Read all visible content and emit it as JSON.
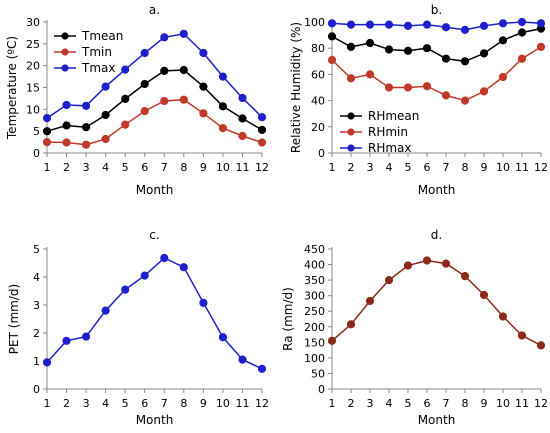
{
  "chart_data": [
    {
      "id": "a",
      "panel_label": "a.",
      "type": "line",
      "xlabel": "Month",
      "ylabel": "Temperature (ºC)",
      "x": [
        1,
        2,
        3,
        4,
        5,
        6,
        7,
        8,
        9,
        10,
        11,
        12
      ],
      "xlim": [
        1,
        12
      ],
      "ylim": [
        0,
        30
      ],
      "yticks": [
        0,
        5,
        10,
        15,
        20,
        25,
        30
      ],
      "legend_position": "top-left",
      "grid": false,
      "series": [
        {
          "name": "Tmean",
          "color": "#000000",
          "values": [
            5.0,
            6.3,
            5.9,
            8.7,
            12.4,
            15.8,
            18.8,
            19.0,
            15.2,
            10.7,
            7.9,
            5.3
          ]
        },
        {
          "name": "Tmin",
          "color": "#c0392b",
          "values": [
            2.5,
            2.4,
            1.9,
            3.2,
            6.5,
            9.6,
            11.9,
            12.2,
            9.1,
            5.7,
            3.9,
            2.4
          ]
        },
        {
          "name": "Tmax",
          "color": "#1f1fcc",
          "values": [
            8.0,
            11.0,
            10.8,
            15.2,
            19.1,
            22.9,
            26.5,
            27.3,
            22.9,
            17.5,
            12.6,
            8.2
          ]
        }
      ]
    },
    {
      "id": "b",
      "panel_label": "b.",
      "type": "line",
      "xlabel": "Month",
      "ylabel": "Relative Humidity (%)",
      "x": [
        1,
        2,
        3,
        4,
        5,
        6,
        7,
        8,
        9,
        10,
        11,
        12
      ],
      "xlim": [
        1,
        12
      ],
      "ylim": [
        0,
        100
      ],
      "yticks": [
        0,
        20,
        40,
        60,
        80,
        100
      ],
      "legend_position": "bottom-left",
      "grid": false,
      "series": [
        {
          "name": "RHmean",
          "color": "#000000",
          "values": [
            89,
            81,
            84,
            79,
            78,
            80,
            72,
            70,
            76,
            86,
            92,
            95
          ]
        },
        {
          "name": "RHmin",
          "color": "#c0392b",
          "values": [
            71,
            57,
            60,
            50,
            50,
            51,
            44,
            40,
            47,
            58,
            72,
            81
          ]
        },
        {
          "name": "RHmax",
          "color": "#1f1fcc",
          "values": [
            99,
            98,
            98,
            98,
            97,
            98,
            96,
            94,
            97,
            99,
            100,
            99
          ]
        }
      ]
    },
    {
      "id": "c",
      "panel_label": "c.",
      "type": "line",
      "xlabel": "Month",
      "ylabel": "PET (mm/d)",
      "x": [
        1,
        2,
        3,
        4,
        5,
        6,
        7,
        8,
        9,
        10,
        11,
        12
      ],
      "xlim": [
        1,
        12
      ],
      "ylim": [
        0,
        5
      ],
      "yticks": [
        0,
        1,
        2,
        3,
        4,
        5
      ],
      "grid": false,
      "series": [
        {
          "color": "#1f1fcc",
          "values": [
            0.95,
            1.72,
            1.87,
            2.8,
            3.55,
            4.05,
            4.68,
            4.35,
            3.08,
            1.85,
            1.05,
            0.72
          ]
        }
      ]
    },
    {
      "id": "d",
      "panel_label": "d.",
      "type": "line",
      "xlabel": "Month",
      "ylabel": "Ra (mm/d)",
      "x": [
        1,
        2,
        3,
        4,
        5,
        6,
        7,
        8,
        9,
        10,
        11,
        12
      ],
      "xlim": [
        1,
        12
      ],
      "ylim": [
        0,
        450
      ],
      "yticks": [
        0,
        50,
        100,
        150,
        200,
        250,
        300,
        350,
        400,
        450
      ],
      "grid": false,
      "series": [
        {
          "color": "#8b2a1a",
          "values": [
            155,
            208,
            283,
            350,
            397,
            413,
            403,
            363,
            302,
            233,
            172,
            140
          ]
        }
      ]
    }
  ]
}
